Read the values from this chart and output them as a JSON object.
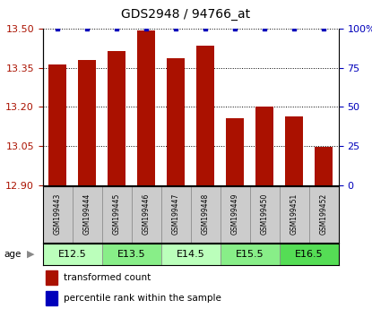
{
  "title": "GDS2948 / 94766_at",
  "samples": [
    "GSM199443",
    "GSM199444",
    "GSM199445",
    "GSM199446",
    "GSM199447",
    "GSM199448",
    "GSM199449",
    "GSM199450",
    "GSM199451",
    "GSM199452"
  ],
  "red_values": [
    13.363,
    13.378,
    13.415,
    13.493,
    13.385,
    13.435,
    13.157,
    13.201,
    13.163,
    13.048
  ],
  "blue_values": [
    100,
    100,
    100,
    100,
    100,
    100,
    100,
    100,
    100,
    100
  ],
  "ylim_left": [
    12.9,
    13.5
  ],
  "ylim_right": [
    0,
    100
  ],
  "yticks_left": [
    12.9,
    13.05,
    13.2,
    13.35,
    13.5
  ],
  "yticks_right": [
    0,
    25,
    50,
    75,
    100
  ],
  "age_groups": [
    {
      "label": "E12.5",
      "cols": [
        0,
        1
      ],
      "color": "#bbffbb"
    },
    {
      "label": "E13.5",
      "cols": [
        2,
        3
      ],
      "color": "#88ee88"
    },
    {
      "label": "E14.5",
      "cols": [
        4,
        5
      ],
      "color": "#bbffbb"
    },
    {
      "label": "E15.5",
      "cols": [
        6,
        7
      ],
      "color": "#88ee88"
    },
    {
      "label": "E16.5",
      "cols": [
        8,
        9
      ],
      "color": "#55dd55"
    }
  ],
  "bar_color": "#aa1100",
  "dot_color": "#0000bb",
  "legend_red": "transformed count",
  "legend_blue": "percentile rank within the sample",
  "label_area_color": "#cccccc",
  "label_area_border": "#aaaaaa"
}
